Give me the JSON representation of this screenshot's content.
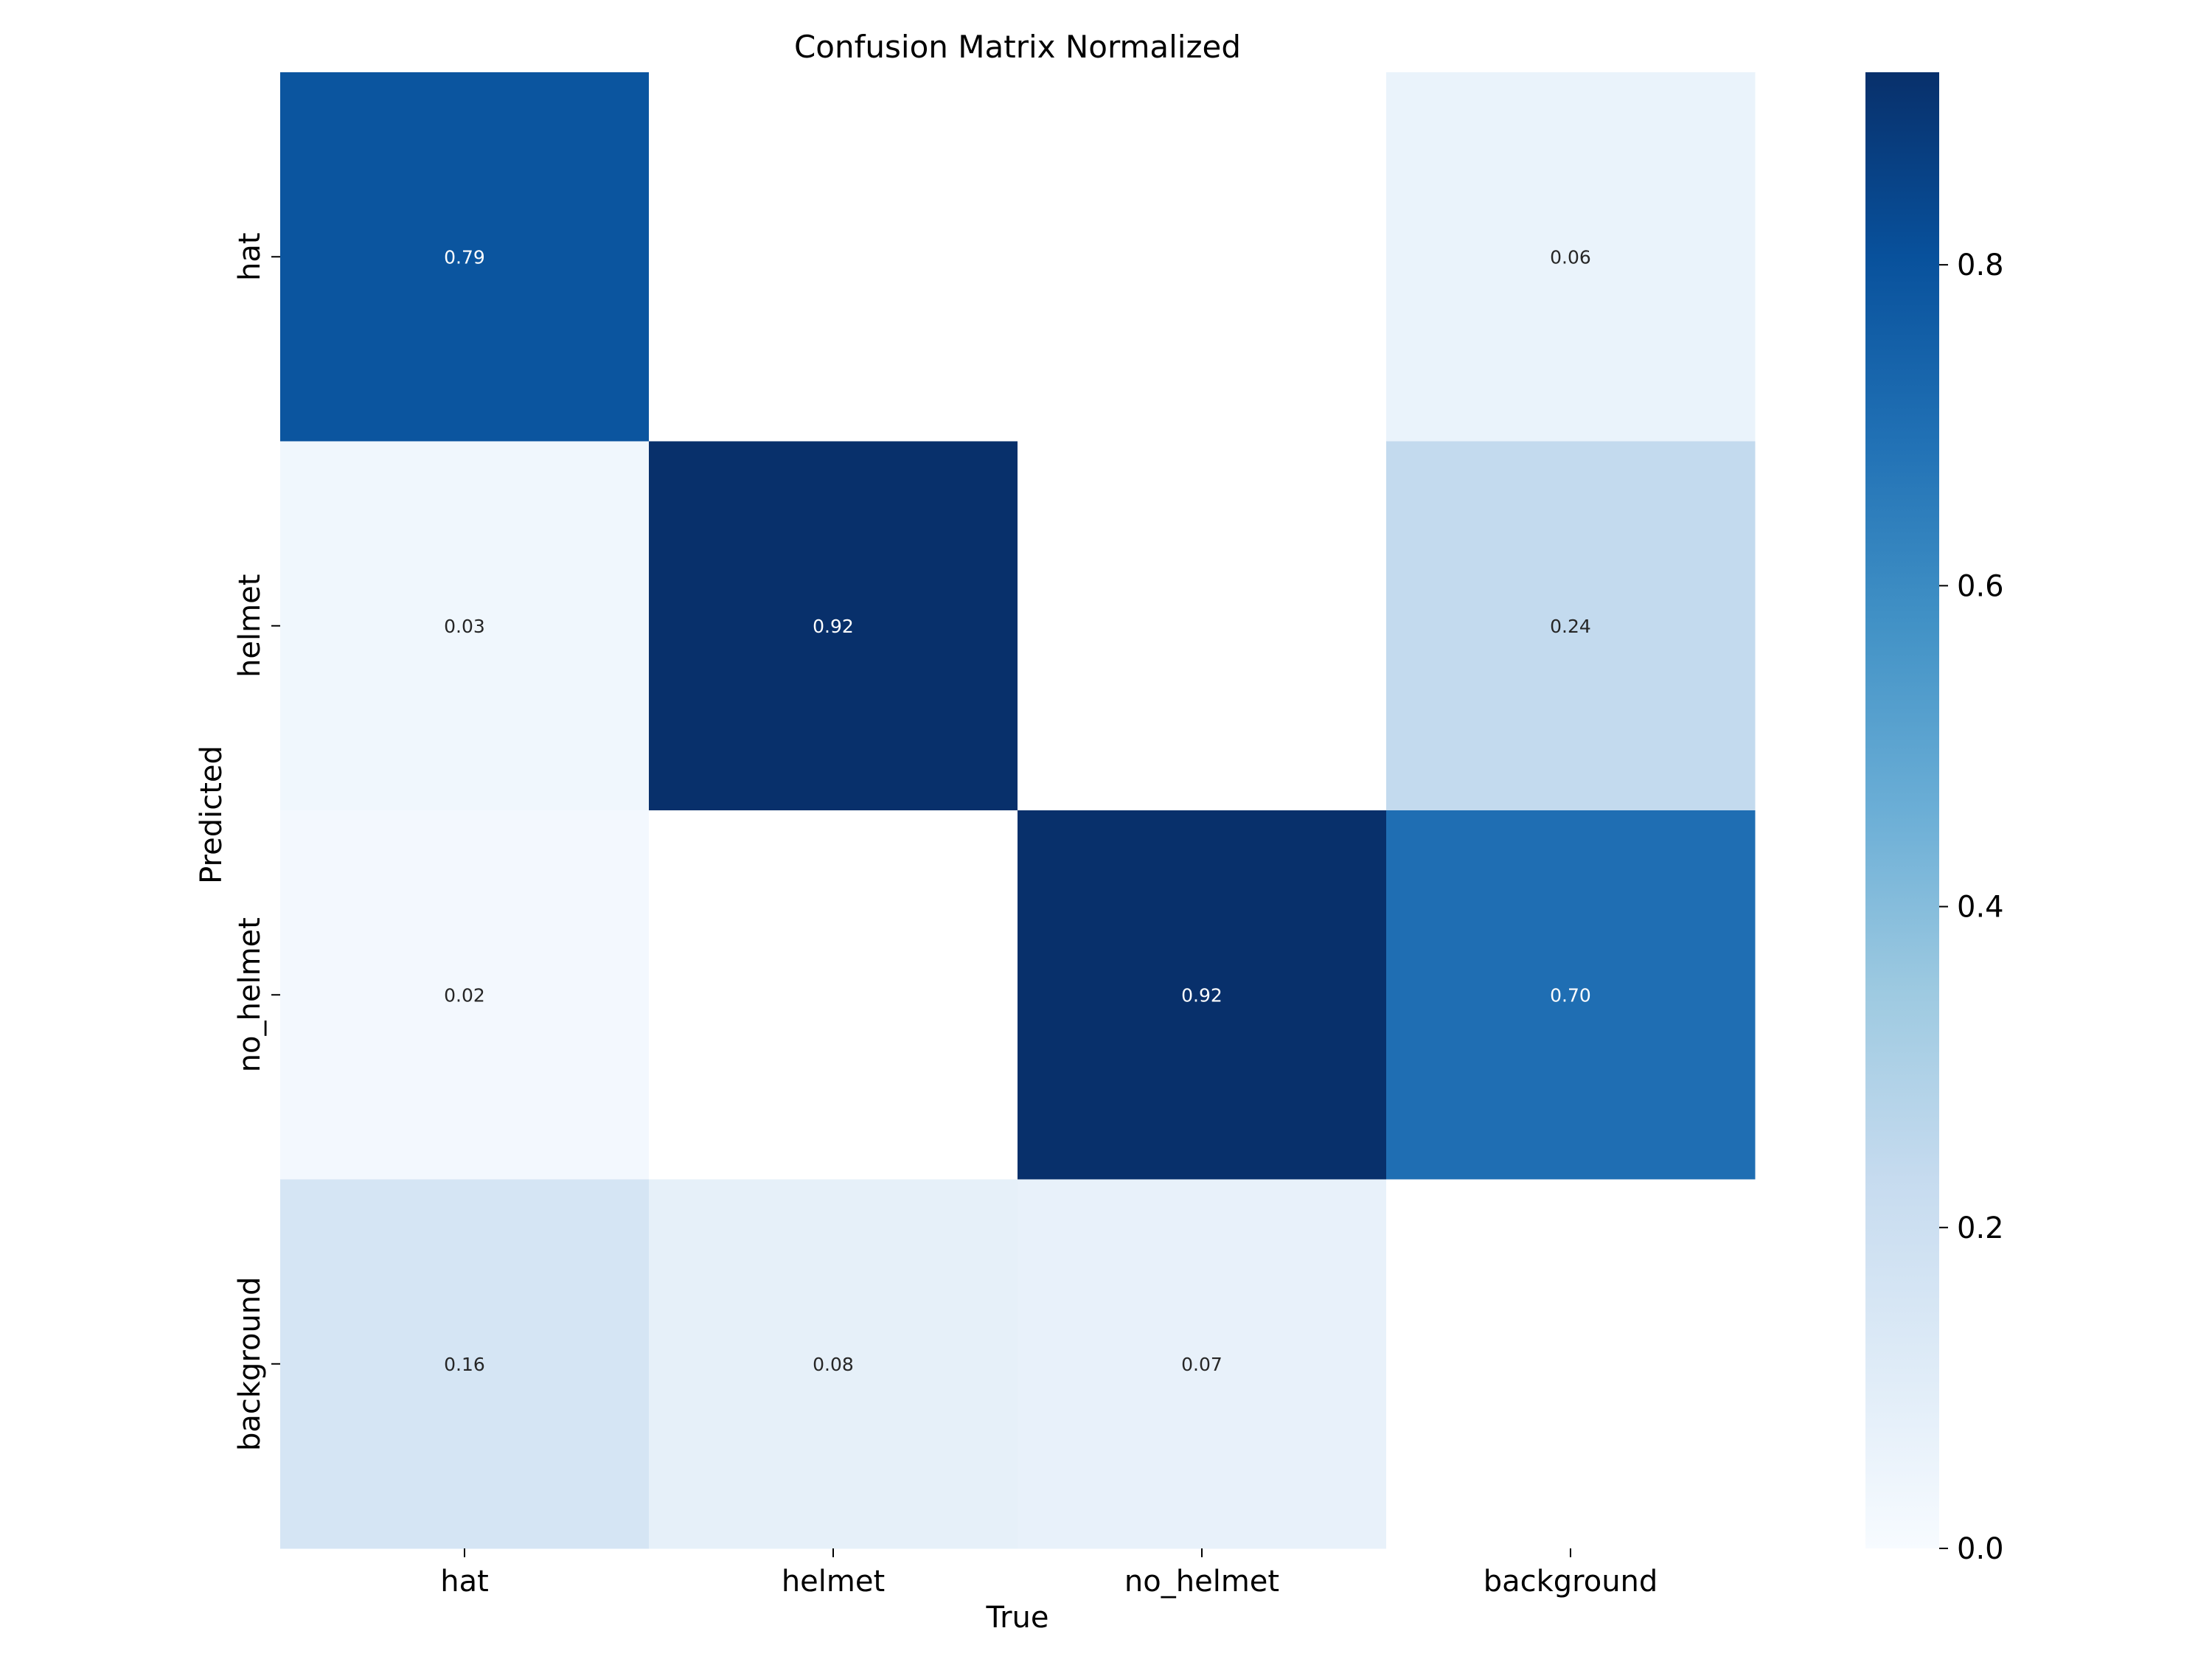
{
  "chart_data": {
    "type": "heatmap",
    "title": "Confusion Matrix Normalized",
    "xlabel": "True",
    "ylabel": "Predicted",
    "x_categories": [
      "hat",
      "helmet",
      "no_helmet",
      "background"
    ],
    "y_categories": [
      "hat",
      "helmet",
      "no_helmet",
      "background"
    ],
    "values": [
      [
        0.79,
        null,
        null,
        0.06
      ],
      [
        0.03,
        0.92,
        null,
        0.24
      ],
      [
        0.02,
        null,
        0.92,
        0.7
      ],
      [
        0.16,
        0.08,
        0.07,
        null
      ]
    ],
    "value_labels": [
      [
        "0.79",
        "",
        "",
        "0.06"
      ],
      [
        "0.03",
        "0.92",
        "",
        "0.24"
      ],
      [
        "0.02",
        "",
        "0.92",
        "0.70"
      ],
      [
        "0.16",
        "0.08",
        "0.07",
        ""
      ]
    ],
    "colorbar": {
      "min": 0.0,
      "max": 0.92,
      "ticks": [
        0.0,
        0.2,
        0.4,
        0.6,
        0.8
      ],
      "tick_labels": [
        "0.0",
        "0.2",
        "0.4",
        "0.6",
        "0.8"
      ],
      "colormap": "Blues"
    }
  },
  "colors": {
    "text_dark": "#262626",
    "text_light": "#ffffff",
    "axis": "#000000"
  }
}
